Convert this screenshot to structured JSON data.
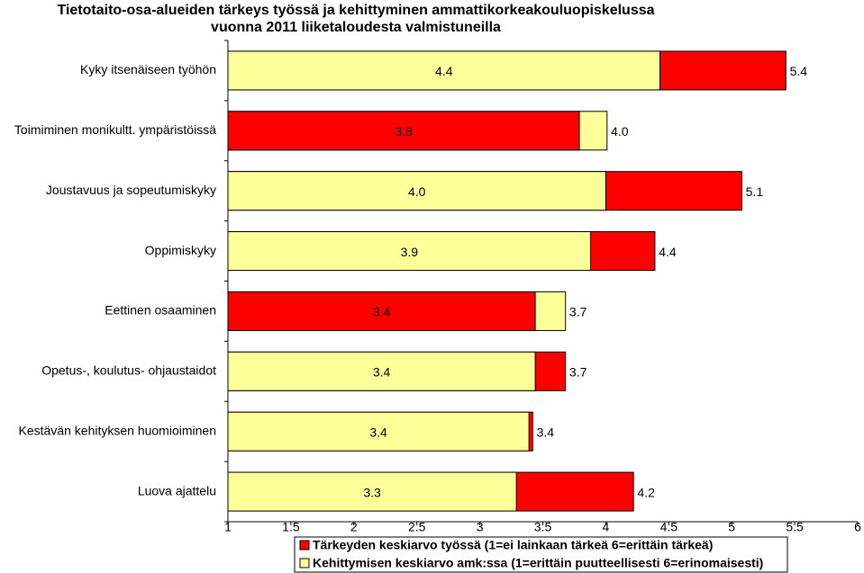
{
  "chart_data": {
    "type": "overlap-bar",
    "title": [
      "Tietotaito-osa-alueiden tärkeys työssä ja kehittyminen ammattikorkeakouluopiskelussa",
      "vuonna 2011 liiketaloudesta valmistuneilla"
    ],
    "categories": [
      "Kyky itsenäiseen työhön",
      "Toimiminen monikultt. ympäristöissä",
      "Joustavuus ja sopeutumiskyky",
      "Oppimiskyky",
      "Eettinen osaaminen",
      "Opetus-, koulutus- ohjaustaidot",
      "Kestävän kehityksen huomioiminen",
      "Luova ajattelu"
    ],
    "series": [
      {
        "name": "Tärkeyden keskiarvo työssä (1=ei lainkaan tärkeä 6=erittäin tärkeä)",
        "color": "#ff0000",
        "values": [
          5.43,
          3.79,
          5.08,
          4.39,
          3.44,
          3.68,
          3.42,
          4.22
        ],
        "value_labels": [
          "5.4",
          "3.8",
          "5.1",
          "4.4",
          "3.4",
          "3.7",
          "3.4",
          "4.2"
        ]
      },
      {
        "name": "Kehittymisen keskiarvo amk:ssa (1=erittäin puutteellisesti 6=erinomaisesti)",
        "color": "#ffff99",
        "values": [
          4.43,
          4.01,
          4.0,
          3.88,
          3.68,
          3.44,
          3.39,
          3.29
        ],
        "value_labels": [
          "4.4",
          "4.0",
          "4.0",
          "3.9",
          "3.7",
          "3.4",
          "3.4",
          "3.3"
        ]
      }
    ],
    "xlim": [
      1,
      6
    ],
    "xticks": [
      1,
      1.5,
      2,
      2.5,
      3,
      3.5,
      4,
      4.5,
      5,
      5.5,
      6
    ]
  }
}
